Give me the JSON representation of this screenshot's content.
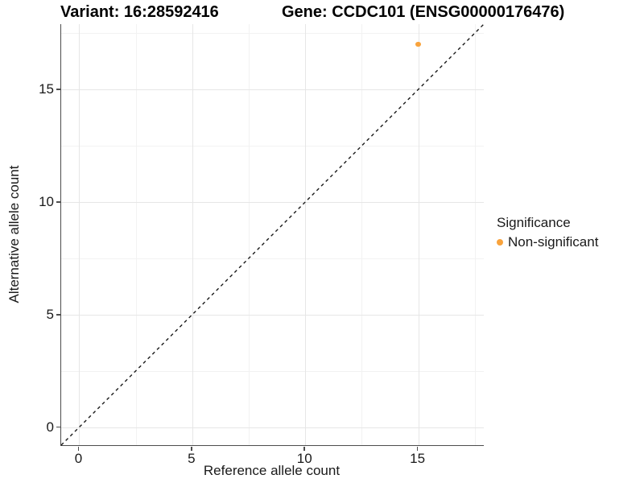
{
  "titles": {
    "variant": "Variant: 16:28592416",
    "gene": "Gene: CCDC101 (ENSG00000176476)"
  },
  "colors": {
    "point": "#F9A33C",
    "axis_line": "#4d4d4d",
    "grid_major": "#e6e6e6",
    "grid_minor": "#f2f2f2",
    "identity_line": "#1a1a1a",
    "text": "#1a1a1a"
  },
  "chart_data": {
    "type": "scatter",
    "title": "Variant: 16:28592416    Gene: CCDC101 (ENSG00000176476)",
    "xlabel": "Reference allele count",
    "ylabel": "Alternative allele count",
    "xlim": [
      -0.8,
      17.9
    ],
    "ylim": [
      -0.8,
      17.9
    ],
    "x_ticks": [
      0,
      5,
      10,
      15
    ],
    "y_ticks": [
      0,
      5,
      10,
      15
    ],
    "x_minor_ticks": [
      2.5,
      7.5,
      12.5,
      17.5
    ],
    "y_minor_ticks": [
      2.5,
      7.5,
      12.5,
      17.5
    ],
    "grid": true,
    "identity_line": {
      "style": "dashed",
      "from": [
        -0.8,
        -0.8
      ],
      "to": [
        17.9,
        17.9
      ]
    },
    "series": [
      {
        "name": "Non-significant",
        "color": "#F9A33C",
        "points": [
          {
            "x": 15,
            "y": 17
          }
        ]
      }
    ],
    "legend": {
      "title": "Significance",
      "position": "right",
      "items": [
        {
          "label": "Non-significant",
          "color": "#F9A33C"
        }
      ]
    }
  }
}
